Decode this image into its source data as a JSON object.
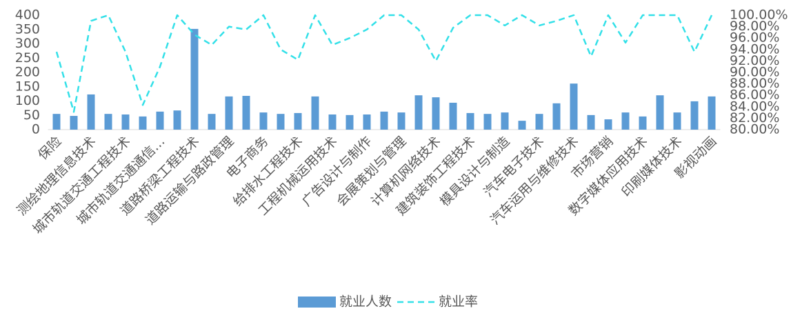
{
  "chart_data": {
    "type": "bar-line",
    "categories": [
      "保险",
      null,
      "测绘地理信息技术",
      null,
      "城市轨道交通工程技术",
      null,
      "城市轨道交通通信…",
      null,
      "道路桥梁工程技术",
      null,
      "道路运输与路政管理",
      null,
      "电子商务",
      null,
      "给排水工程技术",
      null,
      "工程机械运用技术",
      null,
      "广告设计与制作",
      null,
      "会展策划与管理",
      null,
      "计算机网络技术",
      null,
      "建筑装饰工程技术",
      null,
      "模具设计与制造",
      null,
      "汽车电子技术",
      null,
      "汽车运用与维修技术",
      null,
      "市场营销",
      null,
      "数字媒体应用技术",
      null,
      "印刷媒体技术",
      null,
      "影视动画"
    ],
    "series": [
      {
        "name": "就业人数",
        "color": "#5b9bd5",
        "type": "bar",
        "values": [
          55,
          48,
          123,
          55,
          53,
          46,
          63,
          67,
          352,
          55,
          116,
          118,
          60,
          55,
          58,
          116,
          53,
          51,
          53,
          63,
          60,
          120,
          113,
          94,
          58,
          55,
          60,
          31,
          55,
          92,
          161,
          51,
          36,
          60,
          46,
          120,
          60,
          99,
          116
        ]
      },
      {
        "name": "就业率",
        "color": "#33e0e8",
        "type": "line",
        "axis": "y2",
        "values": [
          93.6,
          83.1,
          99,
          100,
          93.6,
          84.3,
          91,
          100,
          96.6,
          94.8,
          98,
          97.5,
          100,
          94,
          92.2,
          100,
          94.8,
          96,
          97.5,
          100,
          100,
          97.5,
          92,
          97.8,
          100,
          100,
          98.2,
          100,
          98.2,
          99,
          100,
          92.8,
          100,
          95.2,
          100,
          100,
          100,
          93.6,
          100
        ]
      }
    ],
    "ylim": [
      0,
      400
    ],
    "yticks": [
      0,
      50,
      100,
      150,
      200,
      250,
      300,
      350,
      400
    ],
    "y2lim": [
      80,
      100
    ],
    "y2ticks": [
      {
        "value": 80,
        "label": "80.00%"
      },
      {
        "value": 82,
        "label": "82.00%"
      },
      {
        "value": 84,
        "label": "84.00%"
      },
      {
        "value": 86,
        "label": "86.00%"
      },
      {
        "value": 88,
        "label": "88.00%"
      },
      {
        "value": 90,
        "label": "90.00%"
      },
      {
        "value": 92,
        "label": "92.00%"
      },
      {
        "value": 94,
        "label": "94.00%"
      },
      {
        "value": 96,
        "label": "96.00%"
      },
      {
        "value": 98,
        "label": "98.00%"
      },
      {
        "value": 100,
        "label": "100.00%"
      }
    ],
    "legend": "bottom"
  }
}
